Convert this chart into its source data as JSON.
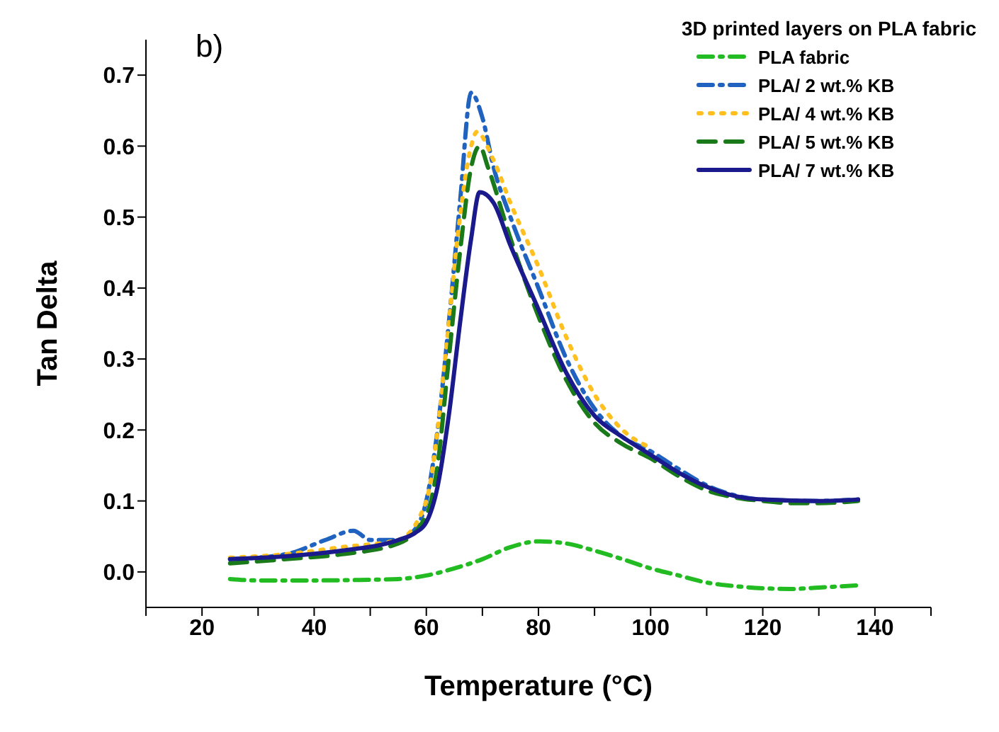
{
  "chart_data": {
    "type": "line",
    "xlabel": "Temperature (°C)",
    "ylabel": "Tan Delta",
    "legend_title": "3D printed layers on PLA fabric",
    "annotations": [
      "b)"
    ],
    "xlim": [
      10,
      150
    ],
    "xticks": [
      {
        "value": 10,
        "label": null
      },
      20,
      {
        "value": 30,
        "label": null
      },
      40,
      {
        "value": 50,
        "label": null
      },
      60,
      {
        "value": 70,
        "label": null
      },
      80,
      {
        "value": 90,
        "label": null
      },
      100,
      {
        "value": 110,
        "label": null
      },
      120,
      {
        "value": 130,
        "label": null
      },
      140,
      {
        "value": 150,
        "label": null
      }
    ],
    "ylim": [
      -0.05,
      0.75
    ],
    "yticks": [
      {
        "value": 0,
        "label": "0.0"
      },
      {
        "value": 0.1,
        "label": "0.1"
      },
      {
        "value": 0.2,
        "label": "0.2"
      },
      {
        "value": 0.3,
        "label": "0.3"
      },
      {
        "value": 0.4,
        "label": "0.4"
      },
      {
        "value": 0.5,
        "label": "0.5"
      },
      {
        "value": 0.6,
        "label": "0.6"
      },
      {
        "value": 0.7,
        "label": "0.7"
      }
    ],
    "grid": false,
    "legend": "top right",
    "marker": "none",
    "series": [
      {
        "name": "PLA fabric",
        "color": "#22bb22",
        "line_style": "dashdot",
        "x": [
          25,
          30,
          40,
          50,
          55,
          60,
          65,
          70,
          75,
          80,
          85,
          90,
          95,
          100,
          105,
          110,
          115,
          120,
          125,
          130,
          137
        ],
        "values": [
          -0.01,
          -0.012,
          -0.012,
          -0.011,
          -0.01,
          -0.005,
          0.005,
          0.018,
          0.035,
          0.043,
          0.04,
          0.03,
          0.018,
          0.005,
          -0.005,
          -0.015,
          -0.02,
          -0.023,
          -0.024,
          -0.022,
          -0.019
        ]
      },
      {
        "name": "PLA/ 2 wt.% KB",
        "color": "#1f62c0",
        "line_style": "dashdot",
        "x": [
          25,
          35,
          42,
          47,
          50,
          55,
          58,
          60,
          62,
          64,
          66,
          68,
          70,
          72,
          75,
          80,
          85,
          90,
          95,
          100,
          105,
          110,
          115,
          120,
          130,
          137
        ],
        "values": [
          0.018,
          0.025,
          0.045,
          0.058,
          0.045,
          0.045,
          0.06,
          0.1,
          0.2,
          0.35,
          0.52,
          0.675,
          0.64,
          0.57,
          0.5,
          0.4,
          0.3,
          0.23,
          0.19,
          0.17,
          0.145,
          0.122,
          0.108,
          0.102,
          0.1,
          0.102
        ]
      },
      {
        "name": "PLA/ 4 wt.% KB",
        "color": "#ffc020",
        "line_style": "dotted",
        "x": [
          25,
          35,
          45,
          55,
          60,
          62,
          64,
          66,
          68,
          69,
          72,
          75,
          80,
          85,
          90,
          95,
          100
        ],
        "values": [
          0.02,
          0.025,
          0.035,
          0.045,
          0.1,
          0.2,
          0.35,
          0.5,
          0.6,
          0.62,
          0.58,
          0.52,
          0.43,
          0.33,
          0.25,
          0.2,
          0.175
        ]
      },
      {
        "name": "PLA/ 5 wt.% KB",
        "color": "#1a7a1a",
        "line_style": "dashed",
        "x": [
          25,
          35,
          45,
          55,
          60,
          62,
          64,
          66,
          68,
          69.5,
          71,
          75,
          80,
          85,
          90,
          95,
          100,
          105,
          110,
          115,
          120,
          125,
          130,
          137
        ],
        "values": [
          0.012,
          0.018,
          0.025,
          0.04,
          0.08,
          0.15,
          0.3,
          0.45,
          0.57,
          0.6,
          0.57,
          0.47,
          0.36,
          0.27,
          0.21,
          0.18,
          0.16,
          0.135,
          0.115,
          0.105,
          0.1,
          0.097,
          0.097,
          0.1
        ]
      },
      {
        "name": "PLA/ 7 wt.% KB",
        "color": "#1a1a8c",
        "line_style": "solid",
        "x": [
          25,
          35,
          45,
          55,
          58,
          60,
          62,
          64,
          66,
          68,
          69.5,
          72,
          75,
          80,
          85,
          90,
          95,
          100,
          105,
          110,
          115,
          120,
          130,
          137
        ],
        "values": [
          0.018,
          0.022,
          0.03,
          0.045,
          0.055,
          0.07,
          0.12,
          0.22,
          0.35,
          0.47,
          0.535,
          0.52,
          0.46,
          0.37,
          0.28,
          0.22,
          0.19,
          0.165,
          0.14,
          0.12,
          0.107,
          0.102,
          0.1,
          0.102
        ]
      }
    ]
  }
}
